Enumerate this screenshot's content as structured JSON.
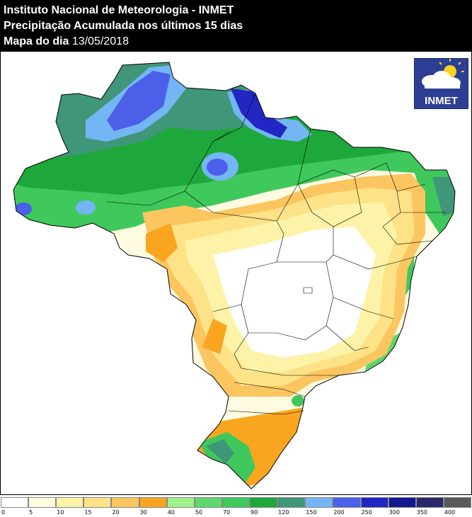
{
  "header": {
    "line1": "Instituto Nacional de Meteorologia - INMET",
    "line2": "Precipitação Acumulada nos últimos 15 dias",
    "line3_label": "Mapa do dia ",
    "line3_date": "13/05/2018"
  },
  "logo": {
    "text": "INMET",
    "icon": "sun-cloud-icon"
  },
  "map": {
    "region": "Brasil",
    "palette": {
      "0": "#ffffff",
      "5": "#fefbe0",
      "10": "#fdf3a8",
      "15": "#fde287",
      "20": "#fbc55f",
      "30": "#f9a520",
      "40": "#9ff28a",
      "50": "#5ed76c",
      "70": "#3fc85b",
      "90": "#1ea83b",
      "120": "#3f9678",
      "150": "#73b6f3",
      "200": "#4c5fe9",
      "250": "#2226c2",
      "300": "#12188f",
      "350": "#28286a",
      "400": "#5a5a5a"
    }
  },
  "legend": {
    "colors": [
      "#ffffff",
      "#fefbe0",
      "#fdf3a8",
      "#fde287",
      "#fbc55f",
      "#f9a520",
      "#9ff28a",
      "#5ed76c",
      "#3fc85b",
      "#1ea83b",
      "#3f9678",
      "#73b6f3",
      "#4c5fe9",
      "#2226c2",
      "#12188f",
      "#28286a",
      "#5a5a5a"
    ],
    "ticks": [
      "0",
      "5",
      "10",
      "15",
      "20",
      "30",
      "40",
      "50",
      "70",
      "90",
      "120",
      "150",
      "200",
      "250",
      "300",
      "350",
      "400"
    ]
  }
}
